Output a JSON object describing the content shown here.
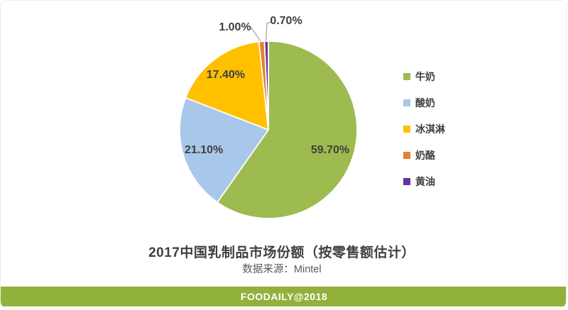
{
  "chart_data": {
    "type": "pie",
    "title": "2017中国乳制品市场份额（按零售额估计）",
    "subtitle": "数据来源：Mintel",
    "labels": [
      "牛奶",
      "酸奶",
      "冰淇淋",
      "奶酪",
      "黄油"
    ],
    "names": [
      "milk",
      "yogurt",
      "ice-cream",
      "cheese",
      "butter"
    ],
    "values": [
      59.7,
      21.1,
      17.4,
      1.0,
      0.7
    ],
    "value_labels": [
      "59.70%",
      "21.10%",
      "17.40%",
      "1.00%",
      "0.70%"
    ],
    "colors": [
      "#9EBB4F",
      "#A8C7EA",
      "#FFC000",
      "#E8802F",
      "#6233A0"
    ],
    "label_color": "#404040",
    "leader_line_color": "#A6A6A6",
    "legend_position": "right",
    "start_angle_deg": 0,
    "direction": "clockwise"
  },
  "footer": {
    "text": "FOODAILY@2018",
    "bg": "#92B13C",
    "color": "#FFFFFF"
  }
}
